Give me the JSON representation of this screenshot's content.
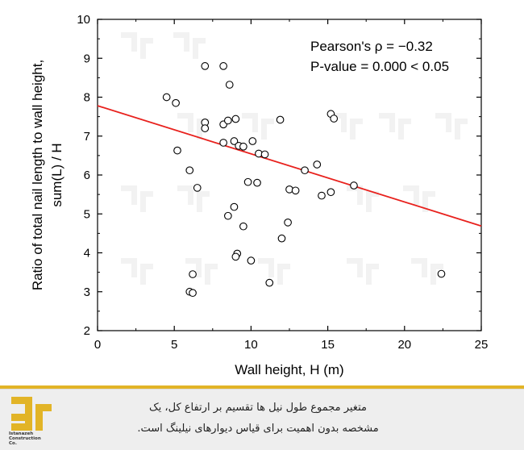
{
  "chart_data": {
    "type": "scatter",
    "title": "",
    "xlabel": "Wall height, H (m)",
    "ylabel_line1": "Ratio of total nail length to wall height,",
    "ylabel_line2": "sum(L) / H",
    "xlim": [
      0,
      25
    ],
    "ylim": [
      2,
      10
    ],
    "x_ticks": [
      0,
      5,
      10,
      15,
      20,
      25
    ],
    "y_ticks": [
      2,
      3,
      4,
      5,
      6,
      7,
      8,
      9,
      10
    ],
    "grid": false,
    "marker": "open circle",
    "annotation_line1": "Pearson's ρ = −0.32",
    "annotation_line2": "P-value = 0.000 < 0.05",
    "fit_line": {
      "x": [
        0,
        25
      ],
      "y": [
        7.78,
        4.69
      ],
      "color": "#e8211d"
    },
    "points": [
      {
        "x": 4.5,
        "y": 8.0
      },
      {
        "x": 5.1,
        "y": 7.85
      },
      {
        "x": 5.2,
        "y": 6.63
      },
      {
        "x": 6.0,
        "y": 6.12
      },
      {
        "x": 6.5,
        "y": 5.67
      },
      {
        "x": 6.2,
        "y": 3.45
      },
      {
        "x": 6.0,
        "y": 3.0
      },
      {
        "x": 6.2,
        "y": 2.97
      },
      {
        "x": 7.0,
        "y": 8.8
      },
      {
        "x": 7.0,
        "y": 7.35
      },
      {
        "x": 7.0,
        "y": 7.2
      },
      {
        "x": 8.2,
        "y": 8.8
      },
      {
        "x": 8.6,
        "y": 8.32
      },
      {
        "x": 8.2,
        "y": 7.3
      },
      {
        "x": 8.5,
        "y": 7.4
      },
      {
        "x": 9.0,
        "y": 7.44
      },
      {
        "x": 8.2,
        "y": 6.83
      },
      {
        "x": 8.9,
        "y": 6.87
      },
      {
        "x": 9.2,
        "y": 6.75
      },
      {
        "x": 9.5,
        "y": 6.73
      },
      {
        "x": 10.1,
        "y": 6.87
      },
      {
        "x": 10.5,
        "y": 6.55
      },
      {
        "x": 10.9,
        "y": 6.53
      },
      {
        "x": 9.8,
        "y": 5.82
      },
      {
        "x": 10.4,
        "y": 5.8
      },
      {
        "x": 8.5,
        "y": 4.95
      },
      {
        "x": 8.9,
        "y": 5.18
      },
      {
        "x": 9.5,
        "y": 4.68
      },
      {
        "x": 9.1,
        "y": 3.98
      },
      {
        "x": 9.0,
        "y": 3.9
      },
      {
        "x": 10.0,
        "y": 3.8
      },
      {
        "x": 11.9,
        "y": 7.42
      },
      {
        "x": 12.5,
        "y": 5.63
      },
      {
        "x": 12.9,
        "y": 5.6
      },
      {
        "x": 12.4,
        "y": 4.78
      },
      {
        "x": 12.0,
        "y": 4.37
      },
      {
        "x": 11.2,
        "y": 3.23
      },
      {
        "x": 13.5,
        "y": 6.12
      },
      {
        "x": 14.3,
        "y": 6.27
      },
      {
        "x": 14.6,
        "y": 5.47
      },
      {
        "x": 15.2,
        "y": 5.56
      },
      {
        "x": 15.2,
        "y": 7.57
      },
      {
        "x": 15.4,
        "y": 7.45
      },
      {
        "x": 16.7,
        "y": 5.73
      },
      {
        "x": 22.4,
        "y": 3.46
      }
    ]
  },
  "footer": {
    "line1": "متغیر مجموع طول نیل ها تقسیم بر ارتفاع کل، یک",
    "line2": "مشخصه بدون اهمیت برای قیاس دیوارهای نیلینگ است.",
    "logo_text_line1": "Istanazeh",
    "logo_text_line2": "Construction",
    "logo_text_line3": "Co."
  },
  "colors": {
    "accent": "#e2b427",
    "fit_line": "#e8211d",
    "footer_bg": "#eeeeee"
  }
}
